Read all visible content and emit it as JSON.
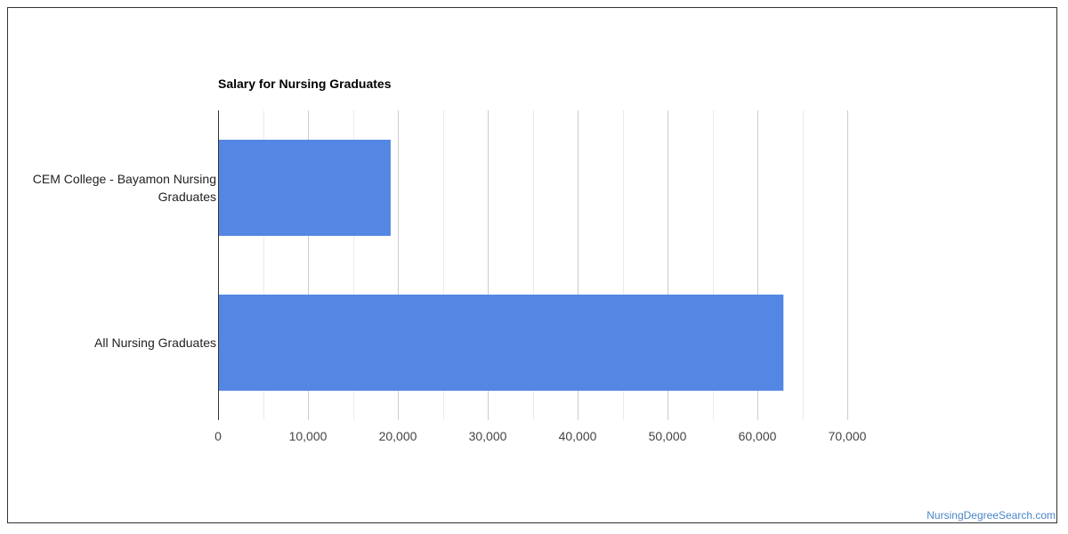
{
  "chart_data": {
    "type": "bar",
    "orientation": "horizontal",
    "title": "Salary for Nursing Graduates",
    "categories": [
      [
        "CEM College - Bayamon Nursing",
        "Graduates"
      ],
      [
        "All Nursing Graduates"
      ]
    ],
    "values": [
      19200,
      62900
    ],
    "xlim": [
      0,
      70000
    ],
    "xticks": [
      "0",
      "10,000",
      "20,000",
      "30,000",
      "40,000",
      "50,000",
      "60,000",
      "70,000"
    ],
    "xtick_values": [
      0,
      10000,
      20000,
      30000,
      40000,
      50000,
      60000,
      70000
    ],
    "minor_gridlines": true,
    "legend": "none",
    "bar_color": "#5486e3",
    "grid_color": "#cccccc",
    "minor_grid_color": "#ebebeb"
  },
  "footer": {
    "credit": "NursingDegreeSearch.com"
  }
}
